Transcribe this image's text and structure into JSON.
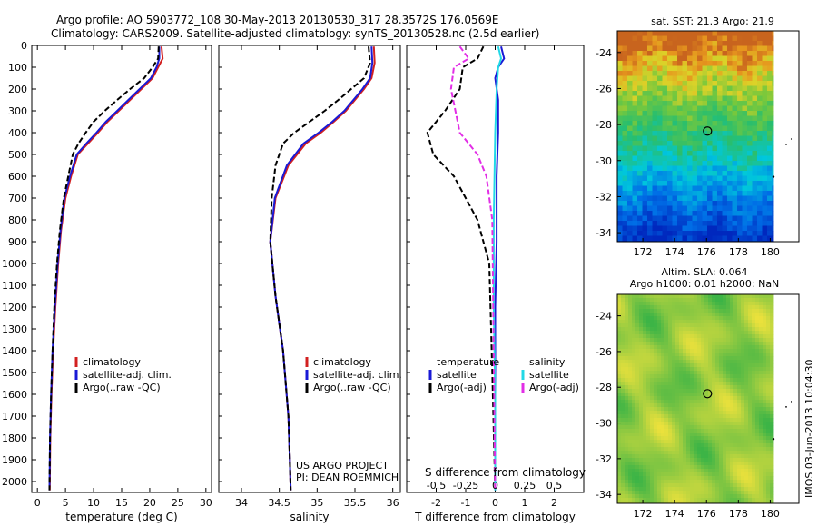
{
  "header": {
    "line1": "Argo profile: AO 5903772_108 30-May-2013 20130530_317 28.3572S 176.0569E",
    "line2": "Climatology: CARS2009. Satellite-adjusted climatology: synTS_20130528.nc (2.5d earlier)"
  },
  "side_label": "IMOS 03-Jun-2013 10:04:30",
  "project": {
    "line1": "US ARGO PROJECT",
    "line2": "PI: DEAN ROEMMICH"
  },
  "colors": {
    "climatology": "#d22020",
    "satellite": "#1a1ad6",
    "argo": "#000000",
    "sat_s": "#22d8e6",
    "argo_s": "#e22ee6"
  },
  "chart_data": [
    {
      "id": "temperature",
      "type": "line",
      "xlabel": "temperature (deg C)",
      "xlim": [
        -1,
        31
      ],
      "ylim": [
        0,
        2050
      ],
      "yticks": [
        0,
        100,
        200,
        300,
        400,
        500,
        600,
        700,
        800,
        900,
        1000,
        1100,
        1200,
        1300,
        1400,
        1500,
        1600,
        1700,
        1800,
        1900,
        2000
      ],
      "xticks": [
        0,
        5,
        10,
        15,
        20,
        25,
        30
      ],
      "legend": [
        "climatology",
        "satellite-adj. clim.",
        "Argo(..raw -QC)"
      ],
      "series": [
        {
          "name": "climatology",
          "x": [
            22.1,
            22.3,
            21.5,
            20.5,
            18.5,
            16.5,
            14.5,
            12.5,
            10.8,
            9.0,
            7.2,
            6.0,
            5.0,
            4.2,
            3.7,
            3.2,
            2.8,
            2.5,
            2.3,
            2.2
          ],
          "y": [
            5,
            60,
            100,
            150,
            200,
            250,
            300,
            350,
            400,
            450,
            500,
            600,
            700,
            850,
            1000,
            1200,
            1400,
            1600,
            1800,
            2040
          ]
        },
        {
          "name": "satellite-adj. clim.",
          "x": [
            21.7,
            21.7,
            21.2,
            20.2,
            18.2,
            16.2,
            14.2,
            12.2,
            10.5,
            8.7,
            7.0,
            5.8,
            4.8,
            4.1,
            3.6,
            3.1,
            2.7,
            2.45,
            2.25,
            2.15
          ],
          "y": [
            5,
            60,
            100,
            150,
            200,
            250,
            300,
            350,
            400,
            450,
            500,
            600,
            700,
            850,
            1000,
            1200,
            1400,
            1600,
            1800,
            2040
          ]
        },
        {
          "name": "Argo(..raw -QC)",
          "x": [
            21.6,
            21.5,
            20.5,
            19.0,
            16.5,
            14.2,
            12.0,
            10.0,
            8.6,
            7.3,
            6.3,
            5.5,
            4.7,
            4.0,
            3.5,
            3.0,
            2.7,
            2.45,
            2.25,
            2.15
          ],
          "y": [
            5,
            60,
            100,
            150,
            200,
            250,
            300,
            350,
            400,
            450,
            500,
            600,
            700,
            850,
            1000,
            1200,
            1400,
            1600,
            1800,
            2040
          ]
        }
      ]
    },
    {
      "id": "salinity",
      "type": "line",
      "xlabel": "salinity",
      "xlim": [
        33.7,
        36.1
      ],
      "ylim": [
        0,
        2050
      ],
      "xticks": [
        34,
        34.5,
        35,
        35.5,
        36
      ],
      "legend": [
        "climatology",
        "satellite-adj. clim.",
        "Argo(..raw -QC)"
      ],
      "series": [
        {
          "name": "climatology",
          "x": [
            35.75,
            35.76,
            35.72,
            35.62,
            35.5,
            35.38,
            35.22,
            35.05,
            34.85,
            34.62,
            34.45,
            34.38,
            34.45,
            34.55,
            34.62,
            34.64,
            34.65
          ],
          "y": [
            5,
            80,
            150,
            200,
            250,
            300,
            350,
            400,
            450,
            550,
            700,
            900,
            1150,
            1400,
            1700,
            1900,
            2040
          ]
        },
        {
          "name": "satellite-adj. clim.",
          "x": [
            35.72,
            35.73,
            35.7,
            35.6,
            35.48,
            35.36,
            35.2,
            35.02,
            34.82,
            34.6,
            34.44,
            34.38,
            34.45,
            34.55,
            34.62,
            34.64,
            34.65
          ],
          "y": [
            5,
            80,
            150,
            200,
            250,
            300,
            350,
            400,
            450,
            550,
            700,
            900,
            1150,
            1400,
            1700,
            1900,
            2040
          ]
        },
        {
          "name": "Argo(..raw -QC)",
          "x": [
            35.68,
            35.7,
            35.62,
            35.45,
            35.28,
            35.1,
            34.9,
            34.7,
            34.55,
            34.45,
            34.4,
            34.38,
            34.45,
            34.55,
            34.62,
            34.64,
            34.65
          ],
          "y": [
            5,
            80,
            150,
            200,
            250,
            300,
            350,
            400,
            450,
            550,
            700,
            900,
            1150,
            1400,
            1700,
            1900,
            2040
          ]
        }
      ]
    },
    {
      "id": "difference",
      "type": "line",
      "xlabel": "T difference from climatology",
      "top_axis_label": "S difference from climatology",
      "xlim": [
        -3,
        3
      ],
      "ylim": [
        0,
        2050
      ],
      "xticks": [
        -2,
        -1,
        0,
        1,
        2
      ],
      "top_ticks": [
        {
          "label": "-0.5",
          "x": -2
        },
        {
          "label": "-0.25",
          "x": -1
        },
        {
          "label": "0",
          "x": 0
        },
        {
          "label": "0.25",
          "x": 1
        },
        {
          "label": "0.5",
          "x": 2
        }
      ],
      "legend_headers": [
        "temperature",
        "salinity"
      ],
      "legend": [
        "satellite",
        "Argo(-adj)",
        "satellite",
        "Argo(-adj)"
      ],
      "series": [
        {
          "name": "satellite",
          "quantity": "temperature",
          "x": [
            0.2,
            0.3,
            0.1,
            0.0,
            0.1,
            0.1,
            0.05,
            0.05,
            0.0,
            0.0,
            0.0
          ],
          "y": [
            5,
            60,
            100,
            150,
            250,
            400,
            600,
            900,
            1200,
            1600,
            2040
          ]
        },
        {
          "name": "Argo(-adj)",
          "quantity": "temperature",
          "x": [
            -0.4,
            -0.6,
            -1.1,
            -1.2,
            -1.7,
            -2.3,
            -2.1,
            -1.4,
            -0.6,
            -0.2,
            -0.1,
            0.0
          ],
          "y": [
            5,
            60,
            100,
            200,
            300,
            400,
            500,
            600,
            800,
            1000,
            1500,
            2040
          ]
        },
        {
          "name": "satellite",
          "quantity": "salinity",
          "x": [
            0.1,
            0.2,
            0.1,
            0.05,
            0.0,
            -0.05,
            -0.05,
            0.0,
            0.0
          ],
          "y": [
            5,
            60,
            100,
            200,
            400,
            800,
            1200,
            1600,
            2040
          ]
        },
        {
          "name": "Argo(-adj)",
          "quantity": "salinity",
          "x": [
            -1.2,
            -0.9,
            -1.4,
            -1.5,
            -1.2,
            -0.6,
            -0.3,
            -0.1,
            0.0
          ],
          "y": [
            5,
            60,
            100,
            200,
            400,
            500,
            600,
            800,
            2040
          ]
        }
      ]
    },
    {
      "id": "sst-map",
      "type": "heatmap",
      "title": "sat. SST: 21.3 Argo: 21.9",
      "xlim": [
        170.4,
        181.8
      ],
      "ylim": [
        -34.5,
        -22.8
      ],
      "xticks": [
        172,
        174,
        176,
        178,
        180
      ],
      "yticks": [
        -24,
        -26,
        -28,
        -30,
        -32,
        -34
      ],
      "marker": {
        "lon": 176.06,
        "lat": -28.36
      }
    },
    {
      "id": "sla-map",
      "type": "heatmap",
      "title": "Altim. SLA: 0.064",
      "subtitle": "Argo h1000: 0.01 h2000: NaN",
      "xlim": [
        170.4,
        181.8
      ],
      "ylim": [
        -34.5,
        -22.8
      ],
      "xticks": [
        172,
        174,
        176,
        178,
        180
      ],
      "yticks": [
        -24,
        -26,
        -28,
        -30,
        -32,
        -34
      ],
      "marker": {
        "lon": 176.06,
        "lat": -28.36
      }
    }
  ]
}
